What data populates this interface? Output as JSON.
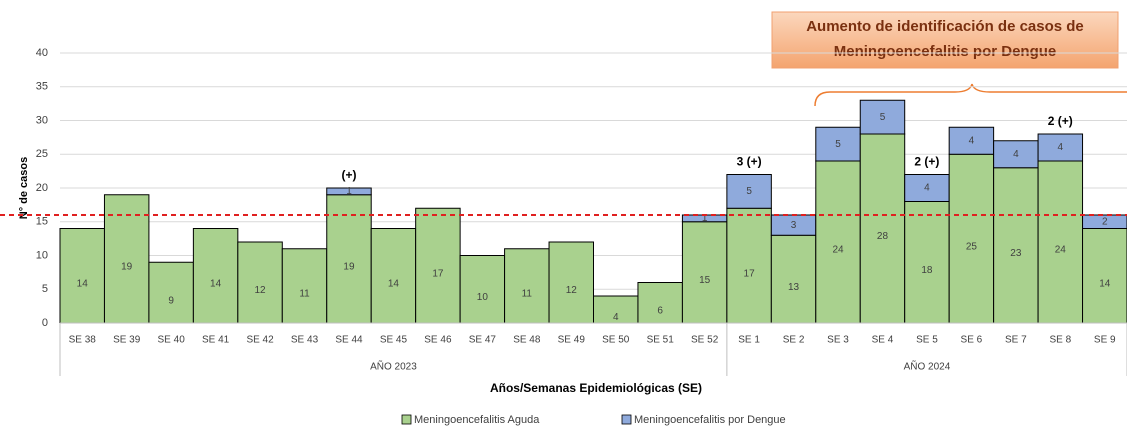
{
  "chart_data": {
    "type": "stacked-bar",
    "title": [
      "Aumento de identificación de casos de",
      "Meningoencefalitis por Dengue"
    ],
    "y_label": "N° de casos",
    "x_label": "Años/Semanas Epidemiológicas (SE)",
    "categories": [
      "SE 38",
      "SE 39",
      "SE 40",
      "SE 41",
      "SE 42",
      "SE 43",
      "SE 44",
      "SE 45",
      "SE 46",
      "SE 47",
      "SE 48",
      "SE 49",
      "SE 50",
      "SE 51",
      "SE 52",
      "SE 1",
      "SE 2",
      "SE 3",
      "SE 4",
      "SE 5",
      "SE 6",
      "SE 7",
      "SE 8",
      "SE 9"
    ],
    "groups": [
      {
        "label": "AÑO 2023",
        "count": 15
      },
      {
        "label": "AÑO 2024",
        "count": 9
      }
    ],
    "series": [
      {
        "name": "Meningoencefalitis Aguda",
        "color": "#a9d18e",
        "values": [
          14,
          19,
          9,
          14,
          12,
          11,
          19,
          14,
          17,
          10,
          11,
          12,
          4,
          6,
          15,
          17,
          13,
          24,
          28,
          18,
          25,
          23,
          24,
          14
        ]
      },
      {
        "name": "Meningoencefalitis por Dengue",
        "color": "#8faadc",
        "values": [
          null,
          null,
          null,
          null,
          null,
          null,
          1,
          null,
          null,
          null,
          null,
          null,
          null,
          null,
          1,
          5,
          3,
          5,
          5,
          4,
          4,
          4,
          4,
          2
        ]
      }
    ],
    "annotations": [
      null,
      null,
      null,
      null,
      null,
      null,
      "(+)",
      null,
      null,
      null,
      null,
      null,
      null,
      null,
      null,
      "3 (+)",
      null,
      null,
      null,
      "2 (+)",
      null,
      null,
      "2 (+)",
      null
    ],
    "reference_line": 16,
    "reference_color": "#e02020",
    "ylim": [
      0,
      40
    ],
    "yticks": [
      0,
      5,
      10,
      15,
      20,
      25,
      30,
      35,
      40
    ],
    "grid": true,
    "legend": "bottom"
  }
}
